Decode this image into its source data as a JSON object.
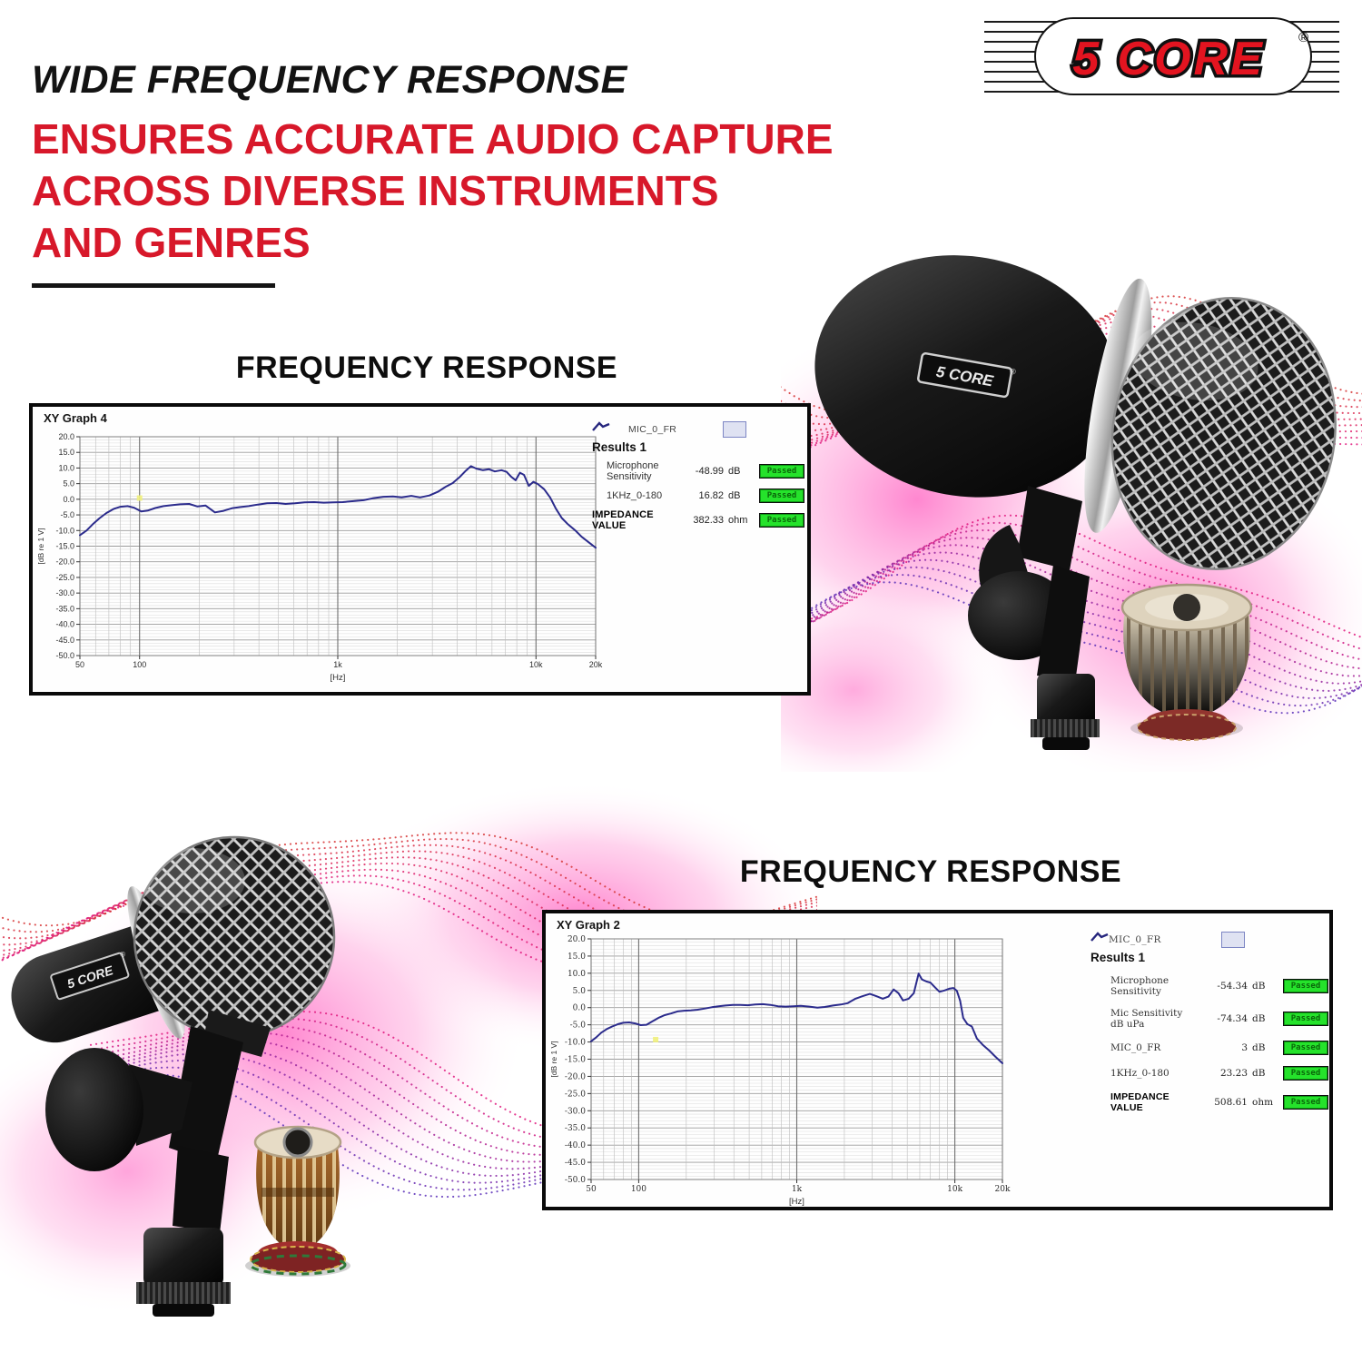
{
  "brand": {
    "logo_text": "5 CORE",
    "registered_mark": "®",
    "logo_red": "#e31420"
  },
  "headline": {
    "line1": "WIDE FREQUENCY RESPONSE",
    "emphasis": [
      "ENSURES ACCURATE AUDIO CAPTURE",
      "ACROSS DIVERSE INSTRUMENTS",
      "AND GENRES"
    ],
    "accent_color": "#d7182a"
  },
  "sections": [
    {
      "heading": "FREQUENCY RESPONSE"
    },
    {
      "heading": "FREQUENCY RESPONSE"
    }
  ],
  "status_colors": {
    "pass_green": "#25e22b"
  },
  "chart_data": [
    {
      "type": "line",
      "panel_title": "XY Graph 4",
      "xlabel": "[Hz]",
      "ylabel": "[dB re 1 V]",
      "xscale": "log",
      "xlim": [
        50,
        20000
      ],
      "ylim": [
        -50,
        20
      ],
      "ytick_step": 5,
      "xticks": [
        {
          "label": "50",
          "value": 50
        },
        {
          "label": "100",
          "value": 100
        },
        {
          "label": "1k",
          "value": 1000
        },
        {
          "label": "10k",
          "value": 10000
        },
        {
          "label": "20k",
          "value": 20000
        }
      ],
      "grid": true,
      "curve_color": "#2b2b8c",
      "legend": {
        "name": "MIC_0_FR"
      },
      "results_title": "Results 1",
      "results": [
        {
          "label": "Microphone Sensitivity",
          "value": "-48.99",
          "unit": "dB",
          "status": "Passed",
          "emphasized": false
        },
        {
          "label": "1KHz_0-180",
          "value": "16.82",
          "unit": "dB",
          "status": "Passed",
          "emphasized": false
        },
        {
          "label": "IMPEDANCE VALUE",
          "value": "382.33",
          "unit": "ohm",
          "status": "Passed",
          "emphasized": true
        }
      ],
      "cursor_marker": {
        "x": 100,
        "y": 0.4,
        "color": "#f0f07c"
      },
      "series": [
        {
          "name": "MIC_0_FR",
          "points": [
            [
              50,
              -11.5
            ],
            [
              54,
              -10
            ],
            [
              58,
              -8
            ],
            [
              63,
              -6
            ],
            [
              68,
              -4.4
            ],
            [
              74,
              -3.1
            ],
            [
              80,
              -2.4
            ],
            [
              87,
              -2.2
            ],
            [
              94,
              -2.7
            ],
            [
              102,
              -3.9
            ],
            [
              110,
              -3.6
            ],
            [
              120,
              -2.8
            ],
            [
              132,
              -2.2
            ],
            [
              145,
              -1.9
            ],
            [
              160,
              -1.6
            ],
            [
              178,
              -1.5
            ],
            [
              196,
              -2.3
            ],
            [
              215,
              -2.0
            ],
            [
              240,
              -4.2
            ],
            [
              265,
              -3.7
            ],
            [
              292,
              -2.9
            ],
            [
              320,
              -2.5
            ],
            [
              355,
              -2.2
            ],
            [
              395,
              -1.7
            ],
            [
              440,
              -1.3
            ],
            [
              490,
              -1.2
            ],
            [
              545,
              -1.5
            ],
            [
              610,
              -1.3
            ],
            [
              680,
              -1.0
            ],
            [
              760,
              -0.9
            ],
            [
              850,
              -1.1
            ],
            [
              950,
              -1.0
            ],
            [
              1060,
              -0.9
            ],
            [
              1200,
              -0.6
            ],
            [
              1350,
              -0.3
            ],
            [
              1500,
              0.3
            ],
            [
              1700,
              0.8
            ],
            [
              1900,
              0.9
            ],
            [
              2100,
              0.6
            ],
            [
              2350,
              1.1
            ],
            [
              2600,
              0.6
            ],
            [
              2900,
              1.2
            ],
            [
              3200,
              2.4
            ],
            [
              3500,
              4.0
            ],
            [
              3800,
              5.2
            ],
            [
              4100,
              7.0
            ],
            [
              4400,
              9.0
            ],
            [
              4700,
              10.6
            ],
            [
              5000,
              9.8
            ],
            [
              5400,
              9.3
            ],
            [
              5800,
              9.6
            ],
            [
              6200,
              8.9
            ],
            [
              6700,
              9.3
            ],
            [
              7100,
              8.8
            ],
            [
              7500,
              7.2
            ],
            [
              7900,
              6.1
            ],
            [
              8300,
              8.5
            ],
            [
              8700,
              7.8
            ],
            [
              9200,
              4.3
            ],
            [
              9700,
              5.6
            ],
            [
              10200,
              4.9
            ],
            [
              11000,
              3.2
            ],
            [
              11800,
              0.5
            ],
            [
              12600,
              -3.0
            ],
            [
              13500,
              -6.0
            ],
            [
              14500,
              -8.0
            ],
            [
              15800,
              -10.0
            ],
            [
              17000,
              -12.0
            ],
            [
              18500,
              -13.8
            ],
            [
              20000,
              -15.5
            ]
          ]
        }
      ]
    },
    {
      "type": "line",
      "panel_title": "XY Graph 2",
      "xlabel": "[Hz]",
      "ylabel": "[dB re 1 V]",
      "xscale": "log",
      "xlim": [
        50,
        20000
      ],
      "ylim": [
        -50,
        20
      ],
      "ytick_step": 5,
      "xticks": [
        {
          "label": "50",
          "value": 50
        },
        {
          "label": "100",
          "value": 100
        },
        {
          "label": "1k",
          "value": 1000
        },
        {
          "label": "10k",
          "value": 10000
        },
        {
          "label": "20k",
          "value": 20000
        }
      ],
      "grid": true,
      "curve_color": "#2b2b8c",
      "legend": {
        "name": "MIC_0_FR"
      },
      "results_title": "Results 1",
      "results": [
        {
          "label": "Microphone Sensitivity",
          "value": "-54.34",
          "unit": "dB",
          "status": "Passed",
          "emphasized": false
        },
        {
          "label": "Mic Sensitivity dB uPa",
          "value": "-74.34",
          "unit": "dB",
          "status": "Passed",
          "emphasized": false
        },
        {
          "label": "MIC_0_FR",
          "value": "3",
          "unit": "dB",
          "status": "Passed",
          "emphasized": false
        },
        {
          "label": "1KHz_0-180",
          "value": "23.23",
          "unit": "dB",
          "status": "Passed",
          "emphasized": false
        },
        {
          "label": "IMPEDANCE VALUE",
          "value": "508.61",
          "unit": "ohm",
          "status": "Passed",
          "emphasized": true
        }
      ],
      "cursor_marker": {
        "x": 128,
        "y": -9.3,
        "color": "#f0f07c"
      },
      "series": [
        {
          "name": "MIC_0_FR",
          "points": [
            [
              50,
              -9.8
            ],
            [
              54,
              -8.6
            ],
            [
              58,
              -7.3
            ],
            [
              63,
              -6.2
            ],
            [
              68,
              -5.5
            ],
            [
              74,
              -4.8
            ],
            [
              80,
              -4.4
            ],
            [
              87,
              -4.3
            ],
            [
              95,
              -4.6
            ],
            [
              103,
              -5.1
            ],
            [
              112,
              -5.0
            ],
            [
              122,
              -4.0
            ],
            [
              133,
              -3.0
            ],
            [
              146,
              -2.2
            ],
            [
              160,
              -1.7
            ],
            [
              176,
              -1.1
            ],
            [
              194,
              -0.9
            ],
            [
              214,
              -0.8
            ],
            [
              236,
              -0.6
            ],
            [
              260,
              -0.3
            ],
            [
              290,
              0.1
            ],
            [
              320,
              0.4
            ],
            [
              355,
              0.6
            ],
            [
              395,
              0.8
            ],
            [
              440,
              0.8
            ],
            [
              490,
              0.7
            ],
            [
              545,
              0.9
            ],
            [
              610,
              1.0
            ],
            [
              680,
              0.8
            ],
            [
              760,
              0.4
            ],
            [
              850,
              0.3
            ],
            [
              950,
              0.4
            ],
            [
              1060,
              0.5
            ],
            [
              1200,
              0.3
            ],
            [
              1350,
              0.0
            ],
            [
              1500,
              0.2
            ],
            [
              1700,
              0.6
            ],
            [
              1900,
              0.9
            ],
            [
              2100,
              1.3
            ],
            [
              2350,
              2.6
            ],
            [
              2600,
              3.3
            ],
            [
              2900,
              4.0
            ],
            [
              3200,
              3.3
            ],
            [
              3500,
              2.6
            ],
            [
              3800,
              3.2
            ],
            [
              4100,
              5.3
            ],
            [
              4400,
              4.2
            ],
            [
              4700,
              2.1
            ],
            [
              5100,
              2.6
            ],
            [
              5500,
              4.2
            ],
            [
              5900,
              9.9
            ],
            [
              6200,
              8.2
            ],
            [
              6600,
              7.6
            ],
            [
              7000,
              7.3
            ],
            [
              7500,
              5.9
            ],
            [
              8000,
              4.6
            ],
            [
              8600,
              5.0
            ],
            [
              9200,
              5.5
            ],
            [
              9800,
              5.7
            ],
            [
              10300,
              4.9
            ],
            [
              10800,
              2.0
            ],
            [
              11300,
              -3.0
            ],
            [
              12000,
              -4.8
            ],
            [
              12800,
              -5.5
            ],
            [
              13800,
              -9.0
            ],
            [
              15000,
              -10.8
            ],
            [
              16500,
              -12.5
            ],
            [
              18000,
              -14.2
            ],
            [
              20000,
              -16.2
            ]
          ]
        }
      ]
    }
  ]
}
